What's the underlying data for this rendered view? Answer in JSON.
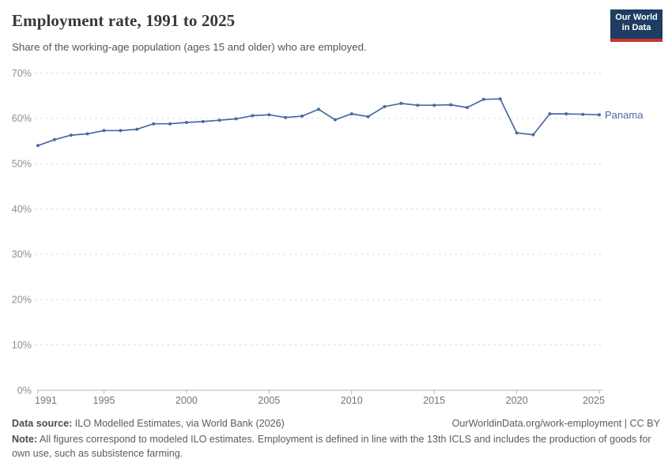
{
  "header": {
    "title": "Employment rate, 1991 to 2025",
    "subtitle": "Share of the working-age population (ages 15 and older) who are employed.",
    "logo": {
      "line1": "Our World",
      "line2": "in Data",
      "bg_color": "#1d3d63",
      "bar_color": "#cf3130"
    }
  },
  "chart_data": {
    "type": "line",
    "title": "Employment rate, 1991 to 2025",
    "xlabel": "",
    "ylabel": "",
    "xlim": [
      1991,
      2025
    ],
    "ylim": [
      0,
      70
    ],
    "grid": "horizontal-dashed",
    "legend_position": "end-of-line",
    "x_ticks": [
      1991,
      1995,
      2000,
      2005,
      2010,
      2015,
      2020,
      2025
    ],
    "y_ticks": [
      0,
      10,
      20,
      30,
      40,
      50,
      60,
      70
    ],
    "y_tick_suffix": "%",
    "series": [
      {
        "name": "Panama",
        "color": "#4a69a2",
        "x": [
          1991,
          1992,
          1993,
          1994,
          1995,
          1996,
          1997,
          1998,
          1999,
          2000,
          2001,
          2002,
          2003,
          2004,
          2005,
          2006,
          2007,
          2008,
          2009,
          2010,
          2011,
          2012,
          2013,
          2014,
          2015,
          2016,
          2017,
          2018,
          2019,
          2020,
          2021,
          2022,
          2023,
          2024,
          2025
        ],
        "values": [
          54.0,
          55.3,
          56.3,
          56.6,
          57.3,
          57.3,
          57.6,
          58.8,
          58.8,
          59.1,
          59.3,
          59.6,
          59.9,
          60.6,
          60.8,
          60.2,
          60.5,
          62.0,
          59.7,
          61.0,
          60.4,
          62.6,
          63.3,
          62.9,
          62.9,
          63.0,
          62.4,
          64.2,
          64.3,
          56.8,
          56.4,
          61.0,
          61.0,
          60.9,
          60.8
        ]
      }
    ],
    "entity_label": "Panama",
    "axis_color": "#b3b3b3",
    "gridline_color": "#dcdcdc",
    "tick_label_color": "#8f8f8f",
    "x_label_color": "#757575"
  },
  "footer": {
    "source_label": "Data source:",
    "source_text": " ILO Modelled Estimates, via World Bank (2026)",
    "link_text": "OurWorldinData.org/work-employment | CC BY",
    "note_label": "Note:",
    "note_text": " All figures correspond to modeled ILO estimates. Employment is defined in line with the 13th ICLS and includes the production of goods for own use, such as subsistence farming."
  }
}
